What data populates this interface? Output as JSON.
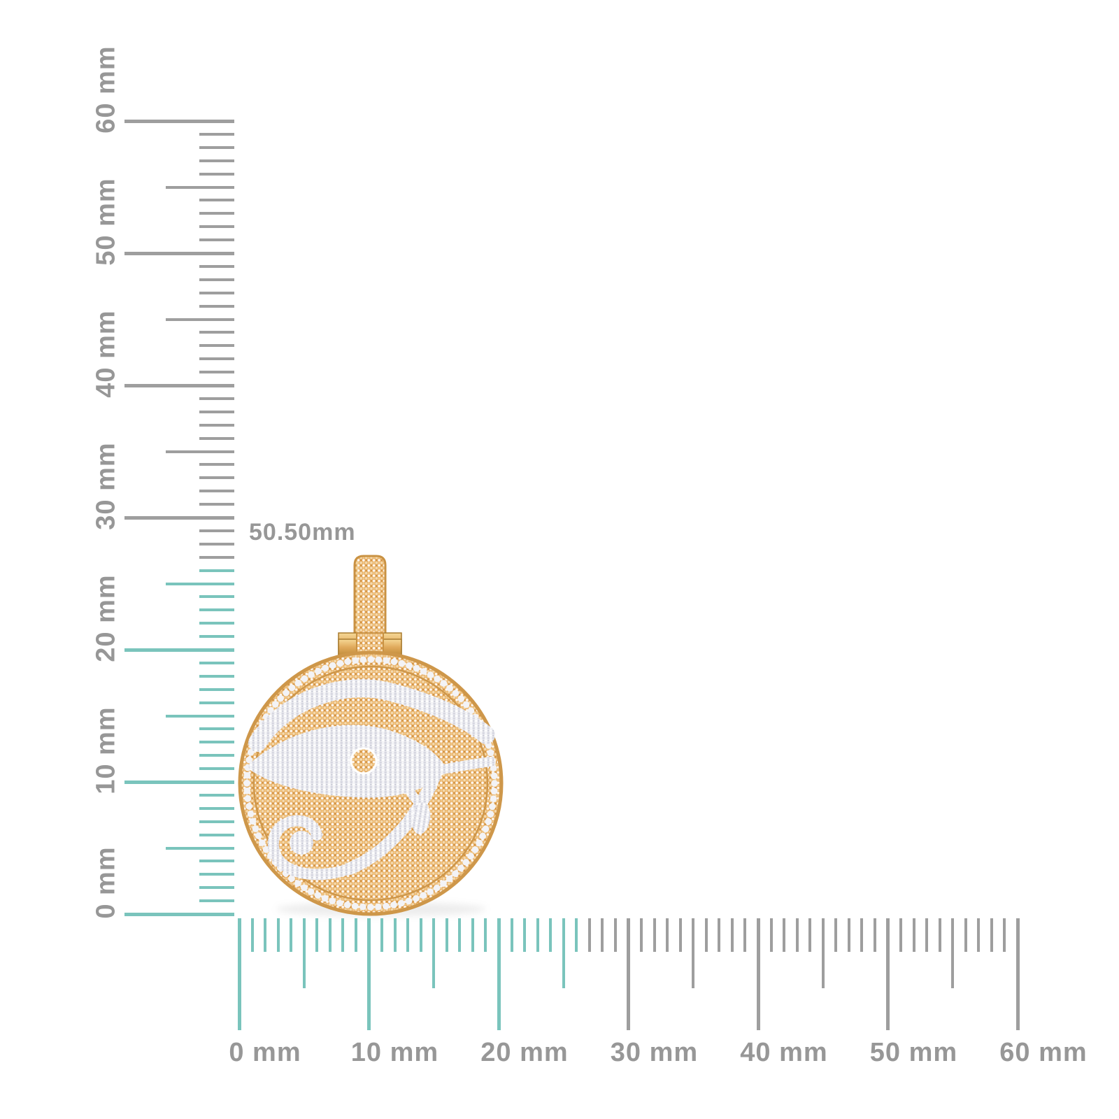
{
  "measurement_label": {
    "text": "50.50mm",
    "color": "#979797"
  },
  "rulers": {
    "unit": "mm",
    "colors": {
      "gray": "#9E9E9E",
      "teal": "#7AC4BC",
      "label": "#979797"
    },
    "vertical": {
      "side": "left",
      "min_mm": 0,
      "max_mm": 60,
      "minor_step_mm": 1,
      "mid_step_mm": 5,
      "major_step_mm": 10,
      "teal_up_to_mm": 26,
      "labels": [
        "0 mm",
        "10 mm",
        "20 mm",
        "30 mm",
        "40 mm",
        "50 mm",
        "60 mm"
      ]
    },
    "horizontal": {
      "side": "bottom",
      "min_mm": 0,
      "max_mm": 60,
      "minor_step_mm": 1,
      "mid_step_mm": 5,
      "major_step_mm": 10,
      "teal_up_to_mm": 26,
      "labels": [
        "0 mm",
        "10 mm",
        "20 mm",
        "30 mm",
        "40 mm",
        "50 mm",
        "60 mm"
      ]
    }
  },
  "pendant": {
    "description": "Round yellow-gold medallion pendant fully pave-set with champagne diamonds, white-diamond Eye of Horus motif, diamond rim ring and pave bail with square bracket hinge",
    "colors": {
      "gold_edge": "#CE974A",
      "gold_pave": "#E7AE63",
      "gold_bracket_light": "#F6D896",
      "gold_bracket_dark": "#BE8A38",
      "diamond_white": "#EEEEF2",
      "diamond_fleck": "#D5D6E0"
    }
  }
}
